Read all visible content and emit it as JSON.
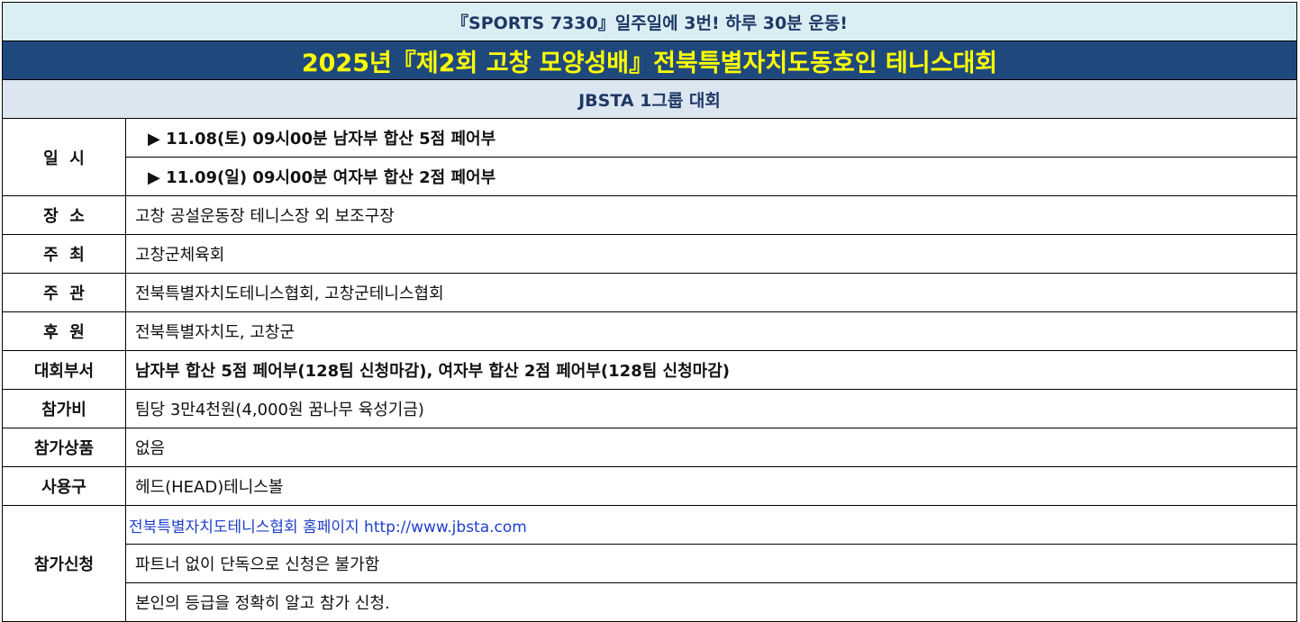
{
  "banner": "『SPORTS 7330』일주일에 3번! 하루 30분 운동!",
  "title": "2025년『제2회 고창 모양성배』전북특별자치도동호인 테니스대회",
  "subtitle": "JBSTA  1그룹 대회",
  "colors": {
    "banner_bg": "#dbeef4",
    "title_bg": "#1f497d",
    "title_text": "#ffff00",
    "subtitle_bg": "#dce6f1",
    "link": "#1f3fcc"
  },
  "rows": {
    "schedule": {
      "label": "일  시",
      "items": [
        "▶ 11.08(토) 09시00분 남자부 합산 5점 페어부",
        "▶ 11.09(일) 09시00분 여자부 합산 2점 페어부"
      ]
    },
    "venue": {
      "label": "장  소",
      "value": "고창 공설운동장 테니스장 외 보조구장"
    },
    "host": {
      "label": "주  최",
      "value": "고창군체육회"
    },
    "organizer": {
      "label": "주  관",
      "value": "전북특별자치도테니스협회, 고창군테니스협회"
    },
    "sponsor": {
      "label": "후  원",
      "value": "전북특별자치도, 고창군"
    },
    "divisions": {
      "label": "대회부서",
      "value": "남자부 합산 5점 페어부(128팀 신청마감), 여자부 합산 2점 페어부(128팀 신청마감)"
    },
    "fee": {
      "label": "참가비",
      "value": "팀당 3만4천원(4,000원 꿈나무 육성기금)"
    },
    "prize": {
      "label": "참가상품",
      "value": "없음"
    },
    "ball": {
      "label": "사용구",
      "value": "헤드(HEAD)테니스볼"
    },
    "apply": {
      "label": "참가신청",
      "link": "전북특별자치도테니스협회 홈페이지 http://www.jbsta.com",
      "notes": [
        "파트너 없이 단독으로 신청은 불가함",
        "본인의 등급을 정확히 알고 참가 신청."
      ]
    }
  }
}
